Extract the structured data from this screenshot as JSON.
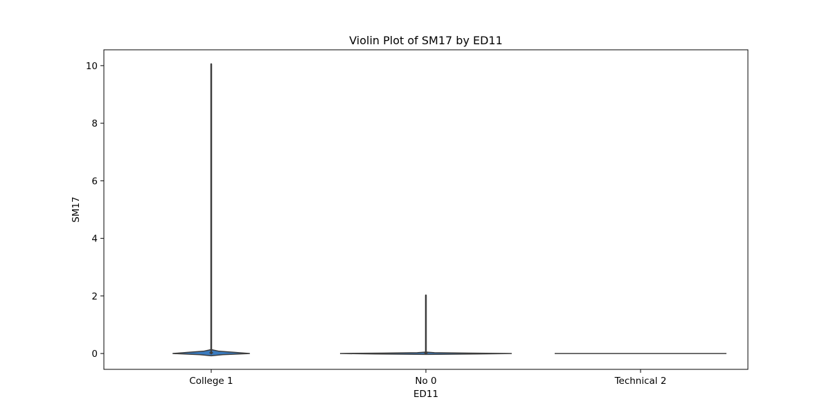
{
  "chart_data": {
    "type": "violin",
    "title": "Violin Plot of SM17 by ED11",
    "xlabel": "ED11",
    "ylabel": "SM17",
    "categories": [
      "College 1",
      "No 0",
      "Technical 2"
    ],
    "ylim": [
      -0.55,
      10.55
    ],
    "yticks": [
      0,
      2,
      4,
      6,
      8,
      10
    ],
    "ytick_labels": [
      "0",
      "2",
      "4",
      "6",
      "8",
      "10"
    ],
    "grid": false,
    "legend": "none",
    "violin_color": "#3a7bbf",
    "edge_color": "#3d3d3d",
    "violins": [
      {
        "category": "College 1",
        "min": 0,
        "max": 10.05,
        "density_y": [
          -0.08,
          -0.04,
          0.0,
          0.04,
          0.08,
          0.12,
          0.14
        ],
        "density_w": [
          0.0,
          0.3,
          1.0,
          0.6,
          0.2,
          0.06,
          0.0
        ],
        "whisker_range": [
          0.0,
          10.05
        ]
      },
      {
        "category": "No 0",
        "min": 0,
        "max": 2.02,
        "density_y": [
          -0.03,
          -0.015,
          0.0,
          0.015,
          0.03,
          0.05
        ],
        "density_w": [
          0.0,
          0.6,
          1.0,
          0.5,
          0.1,
          0.0
        ],
        "whisker_range": [
          0.0,
          2.02
        ]
      },
      {
        "category": "Technical 2",
        "min": 0,
        "max": 0,
        "density_y": [
          0.0
        ],
        "density_w": [
          1.0
        ],
        "whisker_range": [
          0.0,
          0.0
        ]
      }
    ]
  }
}
